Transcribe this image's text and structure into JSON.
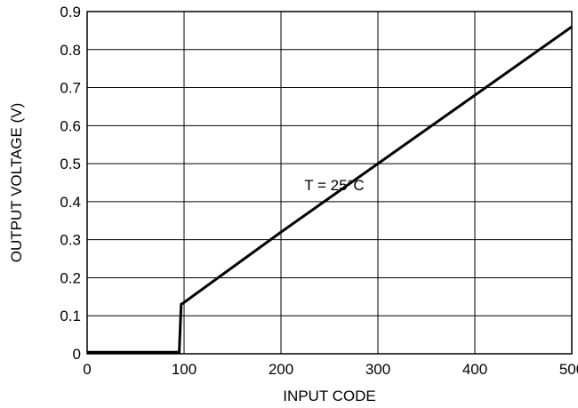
{
  "chart_data": {
    "type": "line",
    "title": "",
    "xlabel": "INPUT CODE",
    "ylabel": "OUTPUT VOLTAGE (V)",
    "xlim": [
      0,
      500
    ],
    "ylim": [
      0,
      0.9
    ],
    "xticks": [
      0,
      100,
      200,
      300,
      400,
      500
    ],
    "yticks": [
      0,
      0.1,
      0.2,
      0.3,
      0.4,
      0.5,
      0.6,
      0.7,
      0.8,
      0.9
    ],
    "xtick_labels": [
      "0",
      "100",
      "200",
      "300",
      "400",
      "500"
    ],
    "ytick_labels": [
      "0",
      "0.1",
      "0.2",
      "0.3",
      "0.4",
      "0.5",
      "0.6",
      "0.7",
      "0.8",
      "0.9"
    ],
    "grid": true,
    "series": [
      {
        "x": [
          0,
          95,
          97,
          100,
          200,
          300,
          400,
          500
        ],
        "y": [
          0.004,
          0.004,
          0.13,
          0.135,
          0.32,
          0.5,
          0.68,
          0.86
        ]
      }
    ],
    "annotations": [
      {
        "text": "T = 25°C",
        "x": 255,
        "y": 0.43
      }
    ]
  }
}
